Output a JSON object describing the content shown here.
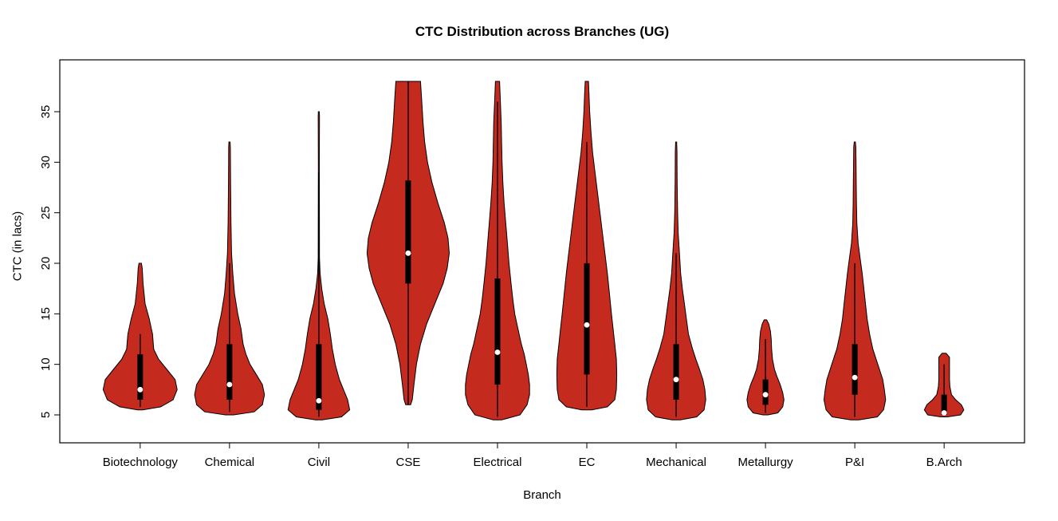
{
  "chart_data": {
    "type": "violin",
    "title": "CTC Distribution across Branches (UG)",
    "xlabel": "Branch",
    "ylabel": "CTC (in lacs)",
    "ylim": [
      4,
      38.5
    ],
    "yticks": [
      5,
      10,
      15,
      20,
      25,
      30,
      35
    ],
    "grid": false,
    "legend": "none",
    "categories": [
      "Biotechnology",
      "Chemical",
      "Civil",
      "CSE",
      "Electrical",
      "EC",
      "Mechanical",
      "Metallurgy",
      "P&I",
      "B.Arch"
    ],
    "style": {
      "fill": "#C42A1D",
      "stroke": "#000000",
      "box_color": "#000000",
      "median_color": "#ffffff",
      "background": "#ffffff"
    },
    "violins": [
      {
        "name": "Biotechnology",
        "median": 7.5,
        "q1": 6.5,
        "q3": 11,
        "whisker_low": 5.8,
        "whisker_high": 13,
        "profile": [
          [
            5.5,
            0.06
          ],
          [
            5.8,
            0.5
          ],
          [
            6.5,
            0.8
          ],
          [
            7.5,
            0.9
          ],
          [
            8.5,
            0.85
          ],
          [
            9.5,
            0.65
          ],
          [
            10.5,
            0.45
          ],
          [
            11.5,
            0.33
          ],
          [
            13,
            0.3
          ],
          [
            14.5,
            0.22
          ],
          [
            16,
            0.12
          ],
          [
            18,
            0.07
          ],
          [
            19.5,
            0.05
          ],
          [
            20,
            0.03
          ]
        ]
      },
      {
        "name": "Chemical",
        "median": 8,
        "q1": 6.5,
        "q3": 12,
        "whisker_low": 5.3,
        "whisker_high": 20,
        "profile": [
          [
            5,
            0.1
          ],
          [
            5.3,
            0.6
          ],
          [
            6,
            0.8
          ],
          [
            7,
            0.85
          ],
          [
            8,
            0.8
          ],
          [
            9,
            0.65
          ],
          [
            10,
            0.5
          ],
          [
            11,
            0.4
          ],
          [
            12,
            0.33
          ],
          [
            13.5,
            0.28
          ],
          [
            15,
            0.2
          ],
          [
            17,
            0.12
          ],
          [
            19,
            0.08
          ],
          [
            21,
            0.05
          ],
          [
            24,
            0.035
          ],
          [
            28,
            0.025
          ],
          [
            31.5,
            0.02
          ],
          [
            32,
            0.015
          ]
        ]
      },
      {
        "name": "Civil",
        "median": 6.4,
        "q1": 5.5,
        "q3": 12,
        "whisker_low": 4.8,
        "whisker_high": 29,
        "profile": [
          [
            4.5,
            0.08
          ],
          [
            4.8,
            0.55
          ],
          [
            5.5,
            0.75
          ],
          [
            6.5,
            0.7
          ],
          [
            7.5,
            0.6
          ],
          [
            8.5,
            0.5
          ],
          [
            10,
            0.4
          ],
          [
            11.5,
            0.33
          ],
          [
            13,
            0.28
          ],
          [
            14.5,
            0.22
          ],
          [
            16,
            0.13
          ],
          [
            17.5,
            0.07
          ],
          [
            19,
            0.03
          ],
          [
            20.5,
            0.015
          ],
          [
            30,
            0.012
          ],
          [
            34.5,
            0.015
          ],
          [
            35,
            0.012
          ]
        ]
      },
      {
        "name": "CSE",
        "median": 21,
        "q1": 18,
        "q3": 28.2,
        "whisker_low": 6,
        "whisker_high": 38,
        "profile": [
          [
            6,
            0.06
          ],
          [
            6.5,
            0.1
          ],
          [
            8,
            0.14
          ],
          [
            10,
            0.2
          ],
          [
            12,
            0.3
          ],
          [
            14,
            0.45
          ],
          [
            16,
            0.65
          ],
          [
            18,
            0.85
          ],
          [
            19.5,
            0.95
          ],
          [
            21,
            1.0
          ],
          [
            22.5,
            0.97
          ],
          [
            24,
            0.88
          ],
          [
            26,
            0.72
          ],
          [
            28,
            0.58
          ],
          [
            30,
            0.47
          ],
          [
            32,
            0.4
          ],
          [
            34,
            0.36
          ],
          [
            36,
            0.33
          ],
          [
            38,
            0.3
          ]
        ]
      },
      {
        "name": "Electrical",
        "median": 11.2,
        "q1": 8,
        "q3": 18.5,
        "whisker_low": 4.8,
        "whisker_high": 36,
        "profile": [
          [
            4.5,
            0.1
          ],
          [
            5,
            0.55
          ],
          [
            6,
            0.72
          ],
          [
            7,
            0.78
          ],
          [
            8,
            0.78
          ],
          [
            9,
            0.75
          ],
          [
            10,
            0.7
          ],
          [
            11,
            0.65
          ],
          [
            12,
            0.58
          ],
          [
            13.5,
            0.5
          ],
          [
            15,
            0.42
          ],
          [
            16.5,
            0.37
          ],
          [
            18,
            0.33
          ],
          [
            20,
            0.28
          ],
          [
            22,
            0.24
          ],
          [
            24,
            0.2
          ],
          [
            26,
            0.16
          ],
          [
            28,
            0.13
          ],
          [
            30,
            0.11
          ],
          [
            32,
            0.1
          ],
          [
            34,
            0.09
          ],
          [
            36,
            0.07
          ],
          [
            38,
            0.05
          ]
        ]
      },
      {
        "name": "EC",
        "median": 13.9,
        "q1": 9,
        "q3": 20,
        "whisker_low": 5.8,
        "whisker_high": 32,
        "profile": [
          [
            5.5,
            0.12
          ],
          [
            5.8,
            0.5
          ],
          [
            6.5,
            0.68
          ],
          [
            7.5,
            0.72
          ],
          [
            9,
            0.73
          ],
          [
            10.5,
            0.72
          ],
          [
            12,
            0.68
          ],
          [
            13.5,
            0.64
          ],
          [
            15,
            0.6
          ],
          [
            17,
            0.55
          ],
          [
            19,
            0.5
          ],
          [
            21,
            0.44
          ],
          [
            23,
            0.38
          ],
          [
            25,
            0.32
          ],
          [
            27,
            0.26
          ],
          [
            29,
            0.2
          ],
          [
            31,
            0.14
          ],
          [
            33,
            0.1
          ],
          [
            35,
            0.07
          ],
          [
            37,
            0.05
          ],
          [
            38,
            0.04
          ]
        ]
      },
      {
        "name": "Mechanical",
        "median": 8.5,
        "q1": 6.5,
        "q3": 12,
        "whisker_low": 4.8,
        "whisker_high": 21,
        "profile": [
          [
            4.5,
            0.1
          ],
          [
            4.8,
            0.5
          ],
          [
            5.5,
            0.68
          ],
          [
            6.5,
            0.72
          ],
          [
            7.5,
            0.7
          ],
          [
            8.5,
            0.65
          ],
          [
            9.5,
            0.57
          ],
          [
            10.5,
            0.48
          ],
          [
            11.5,
            0.4
          ],
          [
            13,
            0.3
          ],
          [
            14.5,
            0.25
          ],
          [
            16,
            0.2
          ],
          [
            17.5,
            0.15
          ],
          [
            19,
            0.11
          ],
          [
            21,
            0.08
          ],
          [
            23,
            0.05
          ],
          [
            25,
            0.035
          ],
          [
            28,
            0.025
          ],
          [
            31,
            0.02
          ],
          [
            32,
            0.012
          ]
        ]
      },
      {
        "name": "Metallurgy",
        "median": 7,
        "q1": 6,
        "q3": 8.5,
        "whisker_low": 5.2,
        "whisker_high": 12.5,
        "profile": [
          [
            5,
            0.06
          ],
          [
            5.2,
            0.3
          ],
          [
            5.8,
            0.42
          ],
          [
            6.5,
            0.45
          ],
          [
            7.2,
            0.42
          ],
          [
            8,
            0.36
          ],
          [
            8.8,
            0.28
          ],
          [
            9.5,
            0.22
          ],
          [
            10.5,
            0.17
          ],
          [
            11.5,
            0.15
          ],
          [
            12.5,
            0.14
          ],
          [
            13.3,
            0.12
          ],
          [
            14,
            0.08
          ],
          [
            14.4,
            0.03
          ]
        ]
      },
      {
        "name": "P&I",
        "median": 8.7,
        "q1": 7,
        "q3": 12,
        "whisker_low": 4.8,
        "whisker_high": 20,
        "profile": [
          [
            4.5,
            0.1
          ],
          [
            4.8,
            0.55
          ],
          [
            5.5,
            0.7
          ],
          [
            6.5,
            0.75
          ],
          [
            7.5,
            0.72
          ],
          [
            8.5,
            0.68
          ],
          [
            9.5,
            0.6
          ],
          [
            10.5,
            0.52
          ],
          [
            11.5,
            0.44
          ],
          [
            13,
            0.36
          ],
          [
            14.5,
            0.3
          ],
          [
            16,
            0.26
          ],
          [
            17.5,
            0.22
          ],
          [
            19,
            0.18
          ],
          [
            20.5,
            0.13
          ],
          [
            22,
            0.08
          ],
          [
            24,
            0.05
          ],
          [
            26,
            0.04
          ],
          [
            28,
            0.035
          ],
          [
            30,
            0.03
          ],
          [
            31.5,
            0.025
          ],
          [
            32,
            0.015
          ]
        ]
      },
      {
        "name": "B.Arch",
        "median": 5.2,
        "q1": 5,
        "q3": 7,
        "whisker_low": 4.9,
        "whisker_high": 10,
        "profile": [
          [
            4.8,
            0.08
          ],
          [
            5,
            0.4
          ],
          [
            5.5,
            0.48
          ],
          [
            6,
            0.42
          ],
          [
            6.5,
            0.28
          ],
          [
            7,
            0.18
          ],
          [
            7.8,
            0.14
          ],
          [
            8.5,
            0.13
          ],
          [
            9.3,
            0.13
          ],
          [
            10,
            0.13
          ],
          [
            10.7,
            0.13
          ],
          [
            11.1,
            0.05
          ]
        ]
      }
    ]
  }
}
